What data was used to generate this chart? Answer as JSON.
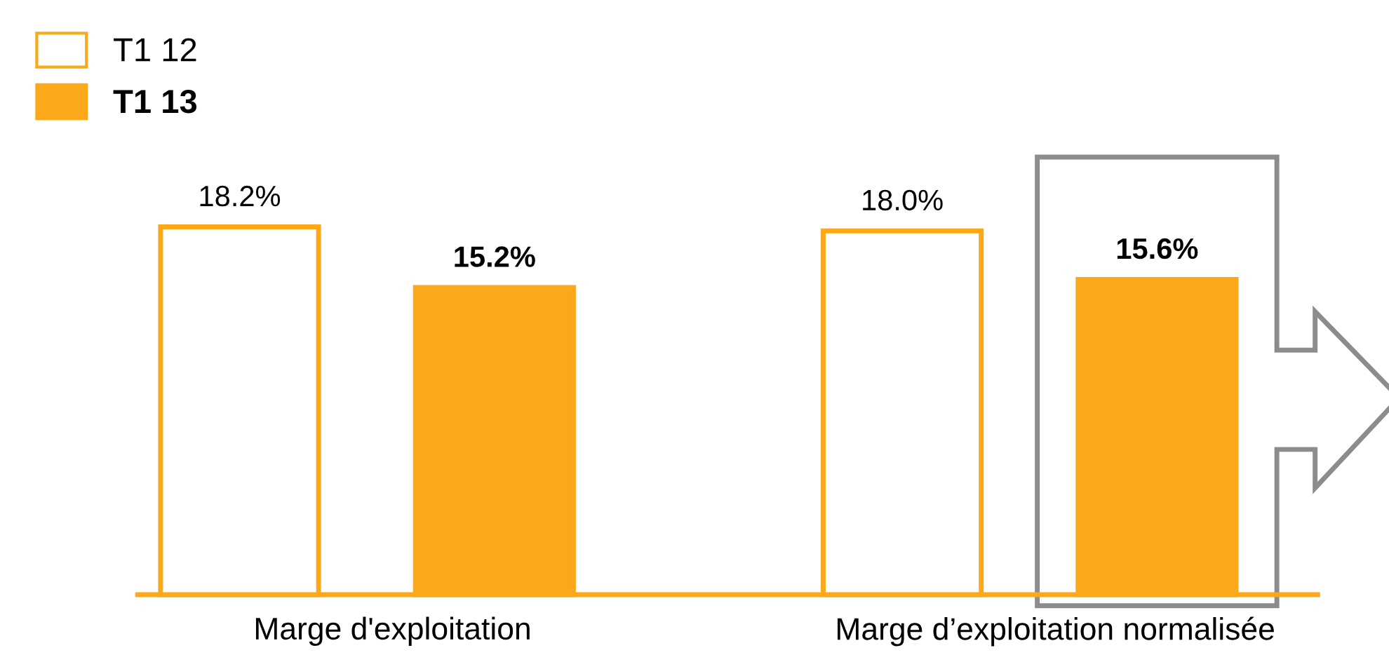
{
  "chart_data": {
    "type": "bar",
    "categories": [
      "Marge d'exploitation",
      "Marge d’exploitation normalisée"
    ],
    "series": [
      {
        "name": "T1 12",
        "color": "#ffffff",
        "values": [
          18.2,
          18.0
        ],
        "value_labels": [
          "18.2%",
          "18.0%"
        ]
      },
      {
        "name": "T1 13",
        "color": "#fba81b",
        "values": [
          15.2,
          15.6
        ],
        "value_labels": [
          "15.2%",
          "15.6%"
        ]
      }
    ],
    "legend": "top left"
  }
}
